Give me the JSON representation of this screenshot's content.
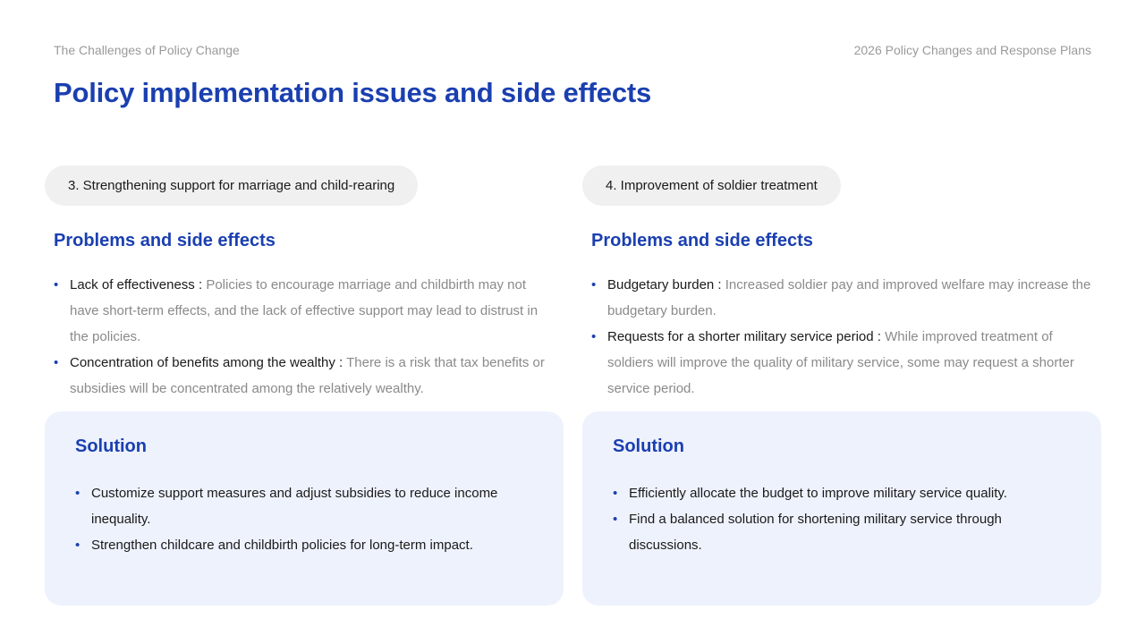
{
  "header": {
    "section_label": "The Challenges of Policy Change",
    "deck_label": "2026 Policy Changes and Response Plans"
  },
  "page_title": "Policy implementation issues and side effects",
  "columns": [
    {
      "pill": "3. Strengthening support for marriage and child-rearing",
      "problems_heading": "Problems and side effects",
      "problems": [
        {
          "lead": "Lack of effectiveness :",
          "text": "Policies to encourage marriage and childbirth may not have short-term effects, and the lack of effective support may lead to distrust in the policies."
        },
        {
          "lead": "Concentration of benefits among the wealthy :",
          "text": "There is a risk that tax benefits or subsidies will be concentrated among the relatively wealthy."
        }
      ],
      "solution_heading": "Solution",
      "solutions": [
        "Customize support measures and adjust subsidies to reduce income inequality.",
        "Strengthen childcare and childbirth policies for long-term impact."
      ]
    },
    {
      "pill": "4. Improvement of soldier treatment",
      "problems_heading": "Problems and side effects",
      "problems": [
        {
          "lead": "Budgetary burden :",
          "text": "Increased soldier pay and improved welfare may increase the budgetary burden."
        },
        {
          "lead": "Requests for a shorter military service period :",
          "text": "While improved treatment of soldiers will improve the quality of military service, some may request a shorter service period."
        }
      ],
      "solution_heading": "Solution",
      "solutions": [
        "Efficiently allocate the budget to improve military service quality.",
        "Find a balanced solution for shortening military service through discussions."
      ]
    }
  ],
  "colors": {
    "accent": "#1a3fb0",
    "muted_text": "#8a8a8a",
    "pill_bg": "#f0f0f0",
    "card_bg": "#eef2fd"
  }
}
